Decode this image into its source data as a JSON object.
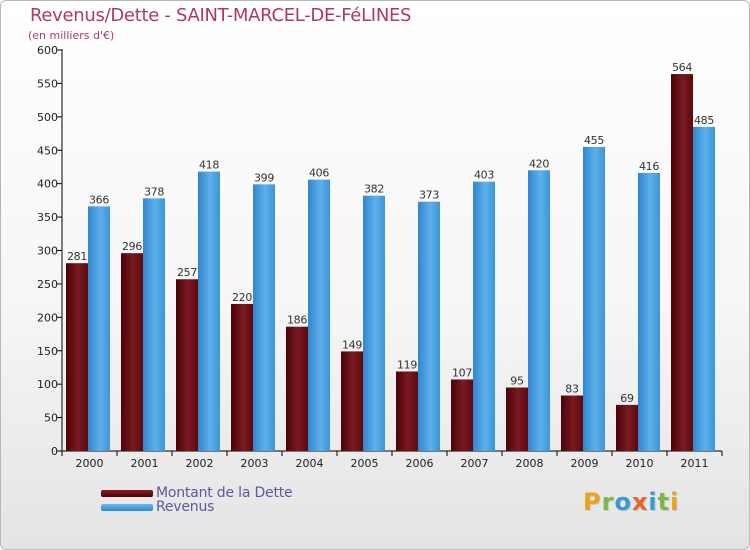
{
  "header": {
    "title": "Revenus/Dette - SAINT-MARCEL-DE-FéLINES",
    "subtitle": "(en milliers d'€)"
  },
  "chart_data": {
    "type": "bar",
    "categories": [
      "2000",
      "2001",
      "2002",
      "2003",
      "2004",
      "2005",
      "2006",
      "2007",
      "2008",
      "2009",
      "2010",
      "2011"
    ],
    "series": [
      {
        "name": "Montant de la Dette",
        "color": "#6b0d12",
        "values": [
          281,
          296,
          257,
          220,
          186,
          149,
          119,
          107,
          95,
          83,
          69,
          564
        ]
      },
      {
        "name": "Revenus",
        "color": "#4fa3e0",
        "values": [
          366,
          378,
          418,
          399,
          406,
          382,
          373,
          403,
          420,
          455,
          416,
          485
        ]
      }
    ],
    "yticks": [
      0,
      50,
      100,
      150,
      200,
      250,
      300,
      350,
      400,
      450,
      500,
      550,
      600
    ],
    "ylim": [
      0,
      600
    ],
    "grid": false,
    "legend_position": "bottom-left"
  },
  "legend": {
    "items": [
      {
        "label": "Montant de la Dette",
        "color": "#6b0d12"
      },
      {
        "label": "Revenus",
        "color": "#4fa3e0"
      }
    ]
  },
  "logo": {
    "text": "Proxiti",
    "letters": [
      {
        "ch": "P",
        "color": "#e8a21f"
      },
      {
        "ch": "r",
        "color": "#7ab648"
      },
      {
        "ch": "o",
        "color": "#3a9ad9"
      },
      {
        "ch": "x",
        "color": "#e8642a"
      },
      {
        "ch": "i",
        "color": "#3a9ad9"
      },
      {
        "ch": "t",
        "color": "#7ab648"
      },
      {
        "ch": "i",
        "color": "#e8a21f"
      }
    ]
  }
}
